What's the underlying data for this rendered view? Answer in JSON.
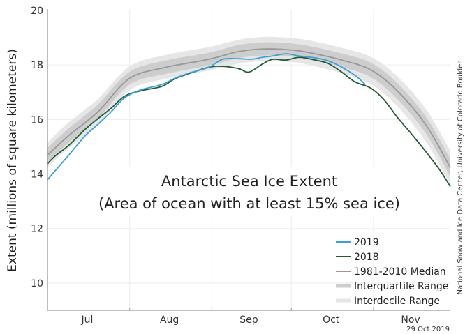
{
  "chart_data": {
    "type": "line",
    "title": "Antarctic Sea Ice Extent",
    "subtitle": "(Area of ocean with at least 15% sea ice)",
    "xlabel": "",
    "ylabel": "Extent (millions of square kilometers)",
    "x_unit": "days since Jul 1",
    "xlim": [
      0,
      152
    ],
    "ylim": [
      9,
      20
    ],
    "yticks": [
      10,
      12,
      14,
      16,
      18,
      20
    ],
    "ytick_labels": [
      "10",
      "12",
      "14",
      "16",
      "18",
      "20"
    ],
    "month_boundaries": [
      0,
      31,
      62,
      92,
      123,
      152
    ],
    "xtick_labels": [
      {
        "label": "Jul",
        "day": 15
      },
      {
        "label": "Aug",
        "day": 46
      },
      {
        "label": "Sep",
        "day": 76
      },
      {
        "label": "Oct",
        "day": 107
      },
      {
        "label": "Nov",
        "day": 137
      }
    ],
    "grid": true,
    "legend_position": "bottom-right",
    "series": [
      {
        "name": "2019",
        "kind": "line",
        "color": "#3a9fdc",
        "x": [
          0,
          3,
          8,
          14,
          19,
          24,
          29,
          35,
          43,
          48,
          53,
          61,
          66,
          72,
          77,
          81,
          85,
          90,
          95,
          101,
          106,
          111,
          116,
          120
        ],
        "values": [
          13.79,
          14.13,
          14.69,
          15.38,
          15.82,
          16.28,
          16.79,
          17.08,
          17.28,
          17.51,
          17.69,
          17.92,
          18.21,
          18.23,
          18.21,
          18.28,
          18.33,
          18.41,
          18.33,
          18.26,
          18.15,
          17.92,
          17.62,
          17.28
        ]
      },
      {
        "name": "2018",
        "kind": "line",
        "color": "#1f5c31",
        "x": [
          0,
          3,
          8,
          14,
          19,
          24,
          29,
          35,
          43,
          48,
          53,
          61,
          66,
          72,
          76,
          81,
          85,
          90,
          95,
          101,
          106,
          111,
          116,
          122,
          127,
          132,
          137,
          143,
          148,
          152
        ],
        "values": [
          14.38,
          14.67,
          15.05,
          15.62,
          16.03,
          16.41,
          16.85,
          17.05,
          17.21,
          17.49,
          17.67,
          17.92,
          17.95,
          17.87,
          17.74,
          18.03,
          18.21,
          18.18,
          18.28,
          18.18,
          18.05,
          17.74,
          17.38,
          17.15,
          16.72,
          16.08,
          15.51,
          14.79,
          14.15,
          13.54
        ]
      },
      {
        "name": "1981-2010 Median",
        "kind": "line",
        "color": "#999999",
        "x": [
          0,
          8,
          19,
          31,
          45,
          61,
          72,
          82,
          93,
          101,
          111,
          122,
          132,
          143,
          152
        ],
        "values": [
          14.69,
          15.41,
          16.28,
          17.51,
          17.92,
          18.21,
          18.49,
          18.59,
          18.54,
          18.41,
          18.18,
          17.82,
          17.05,
          15.77,
          14.23
        ]
      },
      {
        "name": "Interquartile Range",
        "kind": "band",
        "color": "#cdcdcd",
        "x": [
          0,
          8,
          19,
          31,
          45,
          61,
          72,
          82,
          93,
          101,
          111,
          122,
          132,
          143,
          152
        ],
        "lower": [
          14.45,
          15.15,
          16.03,
          17.28,
          17.68,
          17.98,
          18.25,
          18.35,
          18.3,
          18.17,
          17.93,
          17.55,
          16.75,
          15.45,
          13.9
        ],
        "upper": [
          14.95,
          15.68,
          16.55,
          17.75,
          18.17,
          18.45,
          18.73,
          18.83,
          18.78,
          18.65,
          18.42,
          18.08,
          17.33,
          16.07,
          14.55
        ]
      },
      {
        "name": "Interdecile Range",
        "kind": "band",
        "color": "#e6e6e6",
        "x": [
          0,
          8,
          19,
          31,
          45,
          61,
          72,
          82,
          93,
          101,
          111,
          122,
          132,
          143,
          152
        ],
        "lower": [
          14.25,
          14.95,
          15.82,
          17.08,
          17.5,
          17.8,
          18.05,
          18.15,
          18.1,
          17.95,
          17.7,
          17.3,
          16.48,
          15.15,
          13.6
        ],
        "upper": [
          15.15,
          15.9,
          16.75,
          17.95,
          18.38,
          18.66,
          18.92,
          19.03,
          18.98,
          18.86,
          18.63,
          18.3,
          17.58,
          16.35,
          14.85
        ]
      }
    ],
    "legend": [
      {
        "label": "2019",
        "color": "#3a9fdc",
        "style": "thin"
      },
      {
        "label": "2018",
        "color": "#1f5c31",
        "style": "thin"
      },
      {
        "label": "1981-2010 Median",
        "color": "#999999",
        "style": "thin"
      },
      {
        "label": "Interquartile Range",
        "color": "#cdcdcd",
        "style": "thick"
      },
      {
        "label": "Interdecile Range",
        "color": "#e6e6e6",
        "style": "thick"
      }
    ]
  },
  "credit": "National Snow and Ice Data Center, University of Colorado Boulder",
  "date_stamp": "29 Oct 2019"
}
